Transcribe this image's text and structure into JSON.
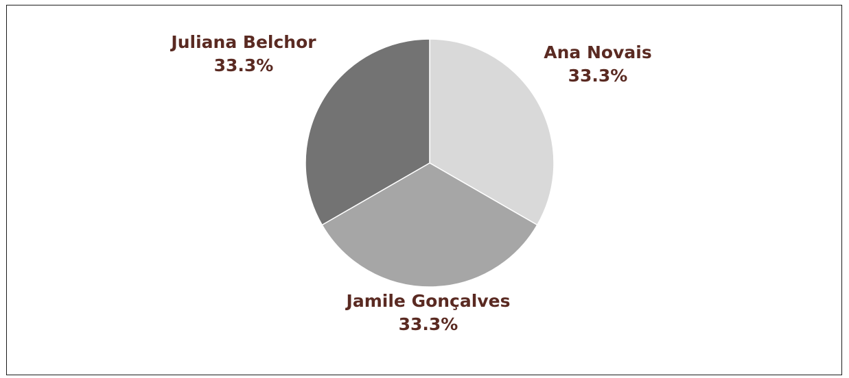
{
  "colors": {
    "label": "#5a2a22",
    "edge": "#ffffff"
  },
  "chart_data": {
    "type": "pie",
    "title": "",
    "slices": [
      {
        "name": "Ana Novais",
        "value": 33.3,
        "label": "33.3%",
        "color": "#d9d9d9"
      },
      {
        "name": "Jamile Gonçalves",
        "value": 33.3,
        "label": "33.3%",
        "color": "#a6a6a6"
      },
      {
        "name": "Juliana Belchor",
        "value": 33.3,
        "label": "33.3%",
        "color": "#737373"
      }
    ],
    "start_angle_deg": 0,
    "direction": "clockwise",
    "labels_outside": true
  }
}
